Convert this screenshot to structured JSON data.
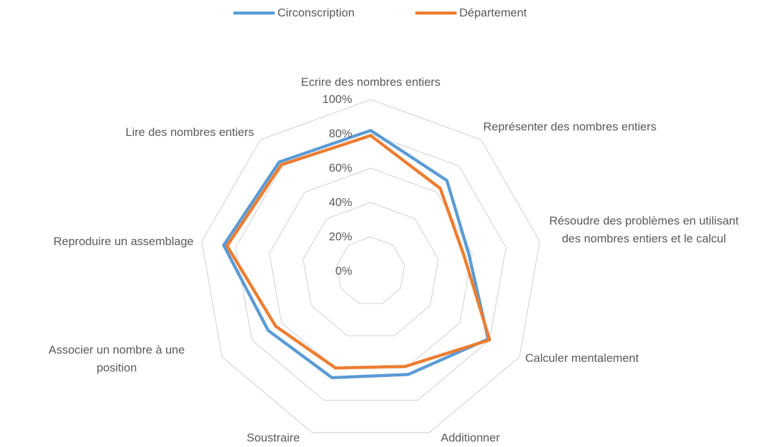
{
  "chart_data": {
    "type": "radar",
    "categories": [
      "Ecrire des nombres entiers",
      "Représenter des nombres entiers",
      "Résoudre des problèmes en utilisant des nombres entiers et le calcul",
      "Calculer mentalement",
      "Additionner",
      "Soustraire",
      "Associer un nombre à une position",
      "Reproduire un assemblage",
      "Lire des nombres entiers"
    ],
    "series": [
      {
        "name": "Circonscription",
        "color": "#5b9bd5",
        "values": [
          82,
          69,
          58,
          79,
          64,
          66,
          69,
          87,
          83
        ]
      },
      {
        "name": "Département",
        "color": "#ed7d31",
        "values": [
          79,
          63,
          55,
          80,
          59,
          60,
          64,
          85,
          81
        ]
      }
    ],
    "ylim": [
      0,
      100
    ],
    "yticks": [
      {
        "value": 0,
        "label": "0%"
      },
      {
        "value": 20,
        "label": "20%"
      },
      {
        "value": 40,
        "label": "40%"
      },
      {
        "value": 60,
        "label": "60%"
      },
      {
        "value": 80,
        "label": "80%"
      },
      {
        "value": 100,
        "label": "100%"
      }
    ],
    "grid": true,
    "legend": "top"
  }
}
